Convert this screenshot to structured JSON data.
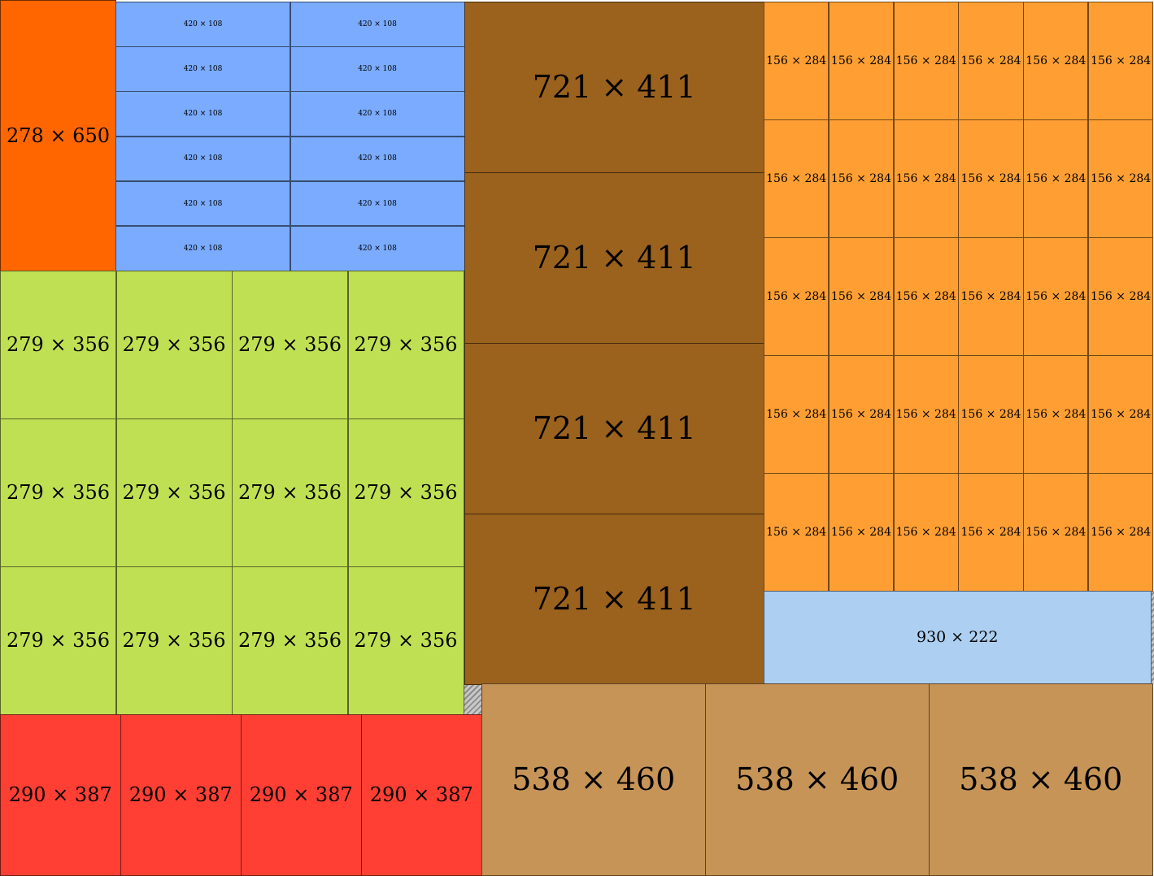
{
  "groups": [
    {
      "label": "278 × 650",
      "color": "#ff6600",
      "count": 1
    },
    {
      "label": "420 × 108",
      "color": "#7aabff",
      "count": 12
    },
    {
      "label": "279 × 356",
      "color": "#c0e054",
      "count": 12
    },
    {
      "label": "290 × 387",
      "color": "#ff3f34",
      "count": 4
    },
    {
      "label": "721 × 411",
      "color": "#9b621d",
      "count": 4
    },
    {
      "label": "156 × 284",
      "color": "#ff9f33",
      "count": 30
    },
    {
      "label": "930 × 222",
      "color": "#add0f2",
      "count": 1
    },
    {
      "label": "538 × 460",
      "color": "#c69457",
      "count": 3
    }
  ]
}
